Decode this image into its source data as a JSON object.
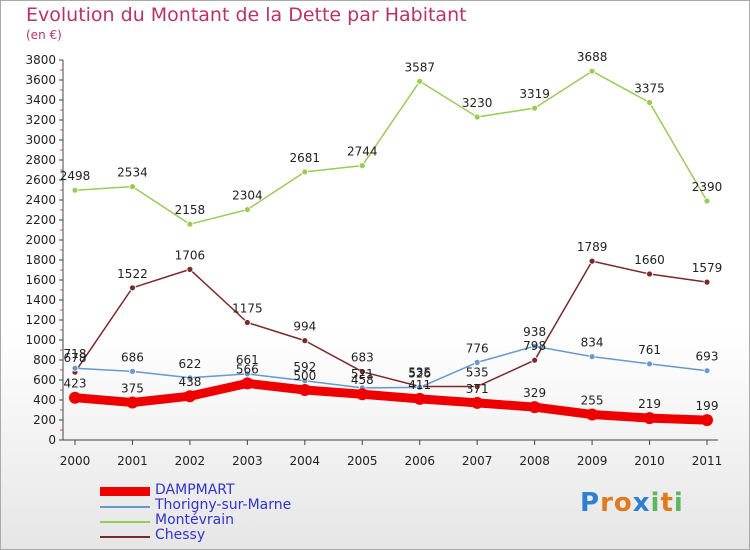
{
  "header": {
    "title": "Evolution du Montant de la Dette par Habitant",
    "subtitle": "(en €)"
  },
  "brand": {
    "letters": [
      "P",
      "r",
      "o",
      "x",
      "i",
      "t",
      "i"
    ],
    "colors": [
      "#2f7fd0",
      "#e07a1f",
      "#e07a1f",
      "#2f7fd0",
      "#5cb85c",
      "#e07a1f",
      "#5cb85c"
    ]
  },
  "chart_data": {
    "type": "line",
    "x": [
      "2000",
      "2001",
      "2002",
      "2003",
      "2004",
      "2005",
      "2006",
      "2007",
      "2008",
      "2009",
      "2010",
      "2011"
    ],
    "ylim": [
      0,
      3800
    ],
    "ytick_step": 200,
    "grid": false,
    "legend_position": "bottom-left",
    "series": [
      {
        "name": "DAMPMART",
        "color": "#ee0000",
        "thick": true,
        "values": [
          423,
          375,
          438,
          566,
          500,
          458,
          411,
          371,
          329,
          255,
          219,
          199
        ],
        "labels": [
          "423",
          "375",
          "438",
          "566",
          "500",
          "458",
          "411",
          "371",
          "329",
          "255",
          "219",
          "199"
        ]
      },
      {
        "name": "Thorigny-sur-Marne",
        "color": "#6699cc",
        "values": [
          718,
          686,
          622,
          661,
          592,
          521,
          526,
          776,
          938,
          834,
          761,
          693
        ],
        "labels": [
          "718",
          "686",
          "622",
          "661",
          "592",
          "521",
          "526",
          "776",
          "938",
          "834",
          "761",
          "693"
        ]
      },
      {
        "name": "Montévrain",
        "color": "#99cc55",
        "values": [
          2498,
          2534,
          2158,
          2304,
          2681,
          2744,
          3587,
          3230,
          3319,
          3688,
          3375,
          2390
        ],
        "labels": [
          "2498",
          "2534",
          "2158",
          "2304",
          "2681",
          "2744",
          "3587",
          "3230",
          "3319",
          "3688",
          "3375",
          "2390"
        ]
      },
      {
        "name": "Chessy",
        "color": "#7a2a2a",
        "values": [
          678,
          1522,
          1706,
          1175,
          994,
          683,
          535,
          535,
          798,
          1789,
          1660,
          1579
        ],
        "labels": [
          "678",
          "1522",
          "1706",
          "1175",
          "994",
          "683",
          "535",
          "535",
          "798",
          "1789",
          "1660",
          "1579"
        ]
      }
    ]
  }
}
